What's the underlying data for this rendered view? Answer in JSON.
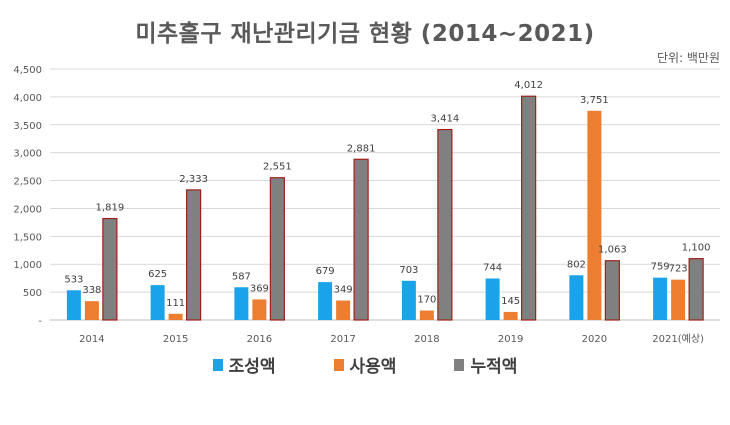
{
  "title": "미추홀구 재난관리기금 현황 (2014~2021)",
  "unit": "단위: 백만원",
  "chart_data": {
    "type": "bar",
    "title": "미추홀구 재난관리기금 현황 (2014~2021)",
    "categories": [
      "2014",
      "2015",
      "2016",
      "2017",
      "2018",
      "2019",
      "2020",
      "2021(예상)"
    ],
    "series": [
      {
        "name": "조성액",
        "color": "#1aa3e8",
        "values": [
          533,
          625,
          587,
          679,
          703,
          744,
          802,
          759
        ],
        "labels": [
          "533",
          "625",
          "587",
          "679",
          "703",
          "744",
          "802",
          "759"
        ]
      },
      {
        "name": "사용액",
        "color": "#ed7d31",
        "values": [
          338,
          111,
          369,
          349,
          170,
          145,
          3751,
          723
        ],
        "labels": [
          "338",
          "111",
          "369",
          "349",
          "170",
          "145",
          "3,751",
          "723"
        ]
      },
      {
        "name": "누적액",
        "color": "#808080",
        "values": [
          1819,
          2333,
          2551,
          2881,
          3414,
          4012,
          1063,
          1100
        ],
        "labels": [
          "1,819",
          "2,333",
          "2,551",
          "2,881",
          "3,414",
          "4,012",
          "1,063",
          "1,100"
        ]
      }
    ],
    "ylim": [
      0,
      4500
    ],
    "yticks": [
      0,
      500,
      1000,
      1500,
      2000,
      2500,
      3000,
      3500,
      4000,
      4500
    ],
    "ytick_labels": [
      "-",
      "500",
      "1,000",
      "1,500",
      "2,000",
      "2,500",
      "3,000",
      "3,500",
      "4,000",
      "4,500"
    ],
    "grid": true,
    "legend": "bottom"
  }
}
